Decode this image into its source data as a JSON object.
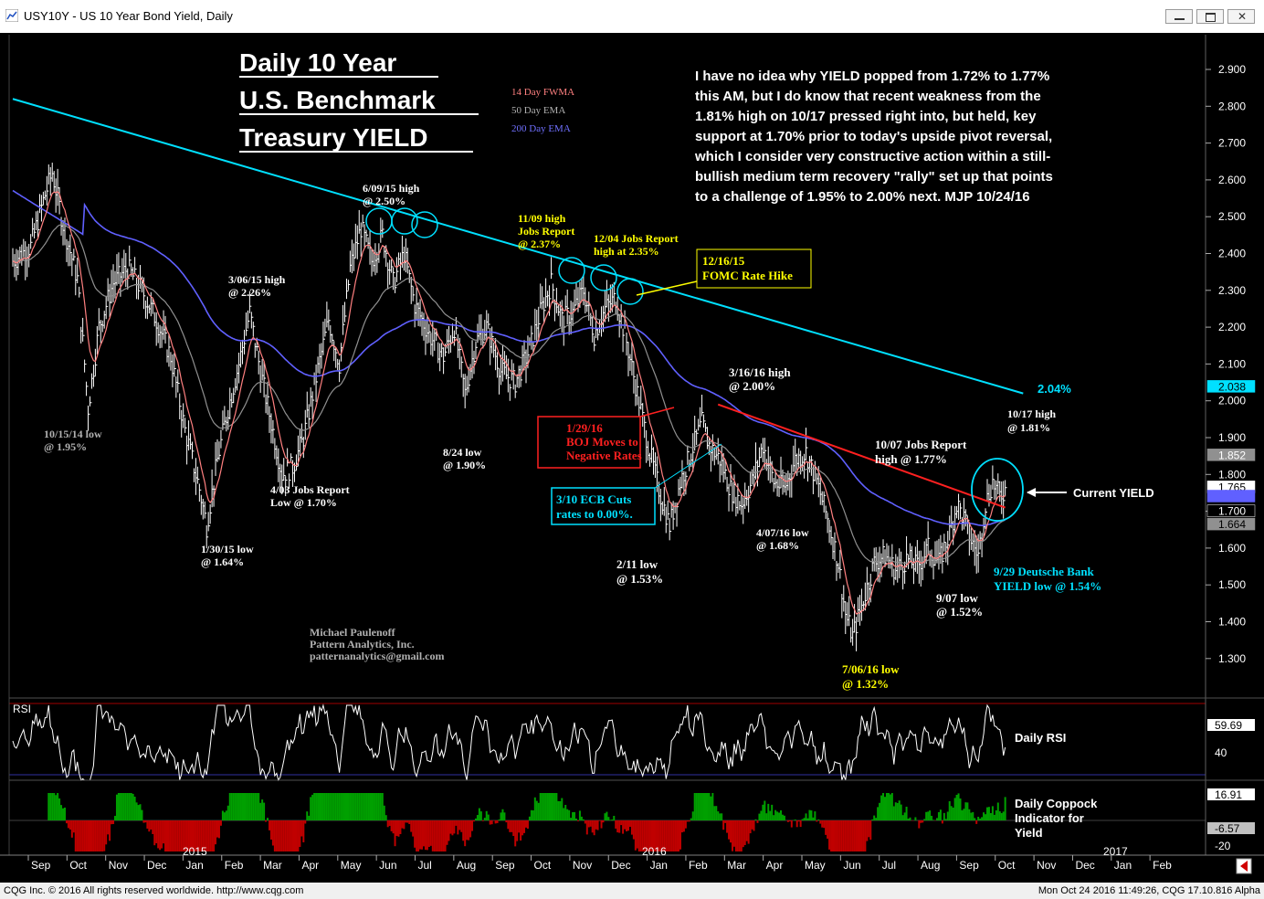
{
  "window": {
    "title": "USY10Y - US 10 Year Bond Yield, Daily",
    "status_left": "CQG Inc. © 2016 All rights reserved worldwide. http://www.cqg.com",
    "status_right": "Mon Oct 24 2016 11:49:26, CQG 17.10.816 Alpha"
  },
  "colors": {
    "background": "#000000",
    "price_bars": "#ffffff",
    "fwma14": "#ff8080",
    "ema50": "#909090",
    "ema200": "#6060ff",
    "trendline_cyan": "#00e0ff",
    "trendline_red": "#ff2020",
    "annotation_yellow": "#ffff00",
    "coppock_green": "#00a000",
    "coppock_red": "#c00000"
  },
  "annotations": {
    "headline": [
      "Daily 10 Year",
      "U.S. Benchmark",
      "Treasury YIELD"
    ],
    "legend": [
      "14 Day FWMA",
      "50 Day EMA",
      "200 Day EMA"
    ],
    "commentary": [
      "I have no idea why YIELD popped from 1.72% to 1.77%",
      "this AM, but I do know that recent weakness from the",
      "1.81% high on 10/17 pressed right into, but held, key",
      "support at 1.70% prior to today's upside pivot reversal,",
      "which I consider very constructive action within a still-",
      "bullish medium term recovery \"rally\" set up that points",
      "to a challenge of 1.95% to 2.00% next.  MJP 10/24/16"
    ],
    "author": [
      "Michael Paulenoff",
      "Pattern Analytics, Inc.",
      "patternanalytics@gmail.com"
    ],
    "labels": {
      "low_101514": [
        "10/15/14 low",
        "@ 1.95%"
      ],
      "low_013015": [
        "1/30/15 low",
        "@ 1.64%"
      ],
      "high_030615": [
        "3/06/15 high",
        "@ 2.26%"
      ],
      "jobs_0403": [
        "4/03 Jobs Report",
        "Low @ 1.70%"
      ],
      "high_060915": [
        "6/09/15 high",
        "@ 2.50%"
      ],
      "low_0824": [
        "8/24 low",
        "@ 1.90%"
      ],
      "high_1109": [
        "11/09 high",
        "Jobs Report",
        "@ 2.37%"
      ],
      "jobs_1204": [
        "12/04 Jobs Report",
        "high at 2.35%"
      ],
      "fomc": [
        "12/16/15",
        "FOMC Rate Hike"
      ],
      "boj": [
        "1/29/16",
        "BOJ Moves to",
        "Negative Rates"
      ],
      "ecb": [
        "3/10 ECB Cuts",
        "rates to 0.00%."
      ],
      "low_0211": [
        "2/11 low",
        "@ 1.53%"
      ],
      "high_031616": [
        "3/16/16 high",
        "@ 2.00%"
      ],
      "low_040716": [
        "4/07/16 low",
        "@ 1.68%"
      ],
      "low_070616": [
        "7/06/16 low",
        "@ 1.32%"
      ],
      "jobs_1007": [
        "10/07 Jobs Report",
        "high @ 1.77%"
      ],
      "high_1017": [
        "10/17 high",
        "@ 1.81%"
      ],
      "current": "Current YIELD",
      "low_0907": [
        "9/07 low",
        "@ 1.52%"
      ],
      "deutsche": [
        "9/29 Deutsche Bank",
        "YIELD low @ 1.54%"
      ],
      "trend_value": "2.04%",
      "rsi_label": "Daily RSI",
      "coppock_label": [
        "Daily Coppock",
        "Indicator for",
        "Yield"
      ]
    }
  },
  "chart_data": {
    "type": "bar",
    "symbol": "USY10Y",
    "y_ticks": [
      "2.900",
      "2.800",
      "2.700",
      "2.600",
      "2.500",
      "2.400",
      "2.300",
      "2.200",
      "2.100",
      "2.000",
      "1.900",
      "1.800",
      "1.700",
      "1.600",
      "1.500",
      "1.400",
      "1.300"
    ],
    "ylim": [
      1.24,
      2.96
    ],
    "price_tags": [
      {
        "value": "2.038",
        "color": "#00e0ff",
        "text": "#000000"
      },
      {
        "value": "1.852",
        "color": "#909090",
        "text": "#ffffff"
      },
      {
        "value": "1.765",
        "color": "#ffffff",
        "text": "#000000"
      },
      {
        "value": "1.740",
        "color": "#6060ff",
        "text": "#6060ff"
      },
      {
        "value": "1.700",
        "color": "#000000",
        "text": "#ffffff"
      },
      {
        "value": "1.664",
        "color": "#909090",
        "text": "#000000"
      }
    ],
    "x_months": [
      "Sep",
      "Oct",
      "Nov",
      "Dec",
      "Jan",
      "Feb",
      "Mar",
      "Apr",
      "May",
      "Jun",
      "Jul",
      "Aug",
      "Sep",
      "Oct",
      "Nov",
      "Dec",
      "Jan",
      "Feb",
      "Mar",
      "Apr",
      "May",
      "Jun",
      "Jul",
      "Aug",
      "Sep",
      "Oct",
      "Nov",
      "Dec",
      "Jan",
      "Feb"
    ],
    "x_years": [
      "2015",
      "2016",
      "2017"
    ],
    "close_path": [
      {
        "x": 0,
        "y": 2.38
      },
      {
        "x": 10,
        "y": 2.42
      },
      {
        "x": 18,
        "y": 2.56
      },
      {
        "x": 22,
        "y": 2.62
      },
      {
        "x": 28,
        "y": 2.48
      },
      {
        "x": 36,
        "y": 2.33
      },
      {
        "x": 40,
        "y": 2.1
      },
      {
        "x": 42,
        "y": 1.98
      },
      {
        "x": 48,
        "y": 2.2
      },
      {
        "x": 56,
        "y": 2.32
      },
      {
        "x": 64,
        "y": 2.36
      },
      {
        "x": 72,
        "y": 2.3
      },
      {
        "x": 80,
        "y": 2.22
      },
      {
        "x": 88,
        "y": 2.12
      },
      {
        "x": 96,
        "y": 1.92
      },
      {
        "x": 104,
        "y": 1.76
      },
      {
        "x": 108,
        "y": 1.66
      },
      {
        "x": 114,
        "y": 1.84
      },
      {
        "x": 120,
        "y": 1.98
      },
      {
        "x": 126,
        "y": 2.1
      },
      {
        "x": 132,
        "y": 2.24
      },
      {
        "x": 138,
        "y": 2.08
      },
      {
        "x": 144,
        "y": 1.94
      },
      {
        "x": 150,
        "y": 1.8
      },
      {
        "x": 156,
        "y": 1.82
      },
      {
        "x": 162,
        "y": 1.9
      },
      {
        "x": 168,
        "y": 2.04
      },
      {
        "x": 176,
        "y": 2.22
      },
      {
        "x": 182,
        "y": 2.1
      },
      {
        "x": 188,
        "y": 2.36
      },
      {
        "x": 194,
        "y": 2.47
      },
      {
        "x": 200,
        "y": 2.38
      },
      {
        "x": 206,
        "y": 2.45
      },
      {
        "x": 212,
        "y": 2.32
      },
      {
        "x": 218,
        "y": 2.4
      },
      {
        "x": 224,
        "y": 2.26
      },
      {
        "x": 232,
        "y": 2.18
      },
      {
        "x": 240,
        "y": 2.12
      },
      {
        "x": 246,
        "y": 2.2
      },
      {
        "x": 252,
        "y": 2.02
      },
      {
        "x": 258,
        "y": 2.16
      },
      {
        "x": 264,
        "y": 2.2
      },
      {
        "x": 272,
        "y": 2.08
      },
      {
        "x": 280,
        "y": 2.05
      },
      {
        "x": 288,
        "y": 2.14
      },
      {
        "x": 294,
        "y": 2.24
      },
      {
        "x": 300,
        "y": 2.32
      },
      {
        "x": 306,
        "y": 2.22
      },
      {
        "x": 312,
        "y": 2.24
      },
      {
        "x": 318,
        "y": 2.3
      },
      {
        "x": 324,
        "y": 2.18
      },
      {
        "x": 330,
        "y": 2.25
      },
      {
        "x": 336,
        "y": 2.28
      },
      {
        "x": 342,
        "y": 2.16
      },
      {
        "x": 348,
        "y": 2.02
      },
      {
        "x": 354,
        "y": 1.88
      },
      {
        "x": 360,
        "y": 1.76
      },
      {
        "x": 366,
        "y": 1.66
      },
      {
        "x": 372,
        "y": 1.78
      },
      {
        "x": 378,
        "y": 1.86
      },
      {
        "x": 384,
        "y": 1.94
      },
      {
        "x": 388,
        "y": 1.88
      },
      {
        "x": 394,
        "y": 1.84
      },
      {
        "x": 400,
        "y": 1.76
      },
      {
        "x": 406,
        "y": 1.72
      },
      {
        "x": 412,
        "y": 1.78
      },
      {
        "x": 418,
        "y": 1.88
      },
      {
        "x": 424,
        "y": 1.78
      },
      {
        "x": 430,
        "y": 1.76
      },
      {
        "x": 436,
        "y": 1.84
      },
      {
        "x": 442,
        "y": 1.86
      },
      {
        "x": 448,
        "y": 1.78
      },
      {
        "x": 454,
        "y": 1.68
      },
      {
        "x": 460,
        "y": 1.56
      },
      {
        "x": 464,
        "y": 1.42
      },
      {
        "x": 468,
        "y": 1.36
      },
      {
        "x": 474,
        "y": 1.46
      },
      {
        "x": 480,
        "y": 1.56
      },
      {
        "x": 486,
        "y": 1.58
      },
      {
        "x": 492,
        "y": 1.54
      },
      {
        "x": 498,
        "y": 1.57
      },
      {
        "x": 504,
        "y": 1.55
      },
      {
        "x": 510,
        "y": 1.6
      },
      {
        "x": 516,
        "y": 1.56
      },
      {
        "x": 522,
        "y": 1.64
      },
      {
        "x": 526,
        "y": 1.72
      },
      {
        "x": 530,
        "y": 1.68
      },
      {
        "x": 534,
        "y": 1.62
      },
      {
        "x": 538,
        "y": 1.58
      },
      {
        "x": 542,
        "y": 1.72
      },
      {
        "x": 546,
        "y": 1.78
      },
      {
        "x": 550,
        "y": 1.74
      },
      {
        "x": 553,
        "y": 1.76
      }
    ],
    "trendlines": [
      {
        "name": "cyan",
        "from": {
          "x": 0,
          "y": 2.82
        },
        "to": {
          "x": 563,
          "y": 2.02
        }
      },
      {
        "name": "red",
        "from": {
          "x": 393,
          "y": 1.99
        },
        "to": {
          "x": 553,
          "y": 1.71
        }
      }
    ],
    "rsi": {
      "label": "RSI",
      "ticks": [
        "40"
      ],
      "last": "59.69"
    },
    "coppock": {
      "ticks": [
        "16.91",
        "-6.57",
        "-20"
      ]
    }
  }
}
